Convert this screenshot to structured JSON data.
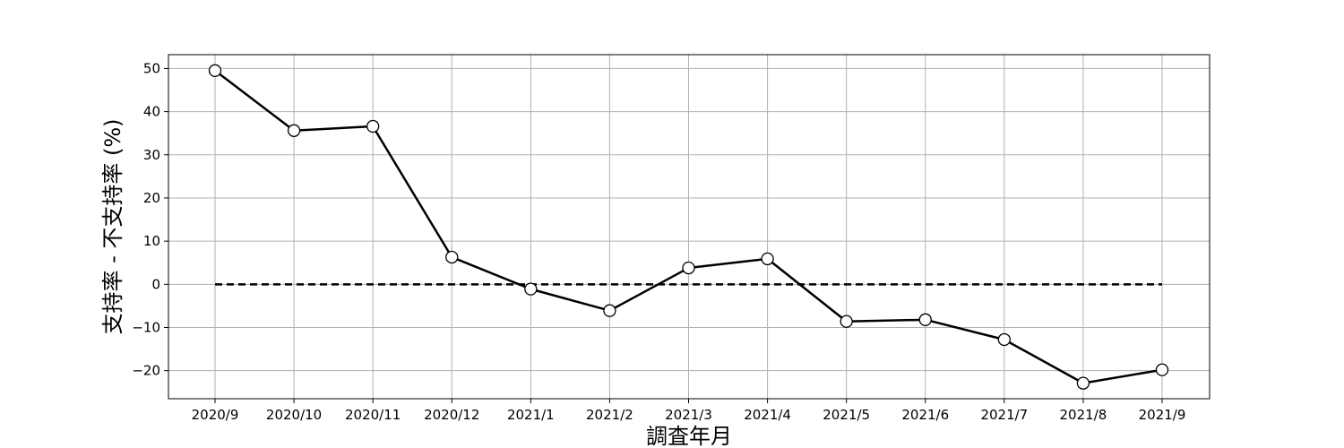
{
  "chart_data": {
    "type": "line",
    "title": "",
    "xlabel": "調査年月",
    "ylabel": "支持率 - 不支持率 (%)",
    "categories": [
      "2020/9",
      "2020/10",
      "2020/11",
      "2020/12",
      "2021/1",
      "2021/2",
      "2021/3",
      "2021/4",
      "2021/5",
      "2021/6",
      "2021/7",
      "2021/8",
      "2021/9"
    ],
    "series": [
      {
        "values": [
          49.5,
          35.6,
          36.6,
          6.3,
          -1.1,
          -6.1,
          3.8,
          5.9,
          -8.6,
          -8.2,
          -12.8,
          -22.9,
          -19.8
        ],
        "color": "#000000",
        "marker": "circle-open"
      }
    ],
    "reference_line": {
      "value": 0,
      "style": "dashed",
      "color": "#000000"
    },
    "yticks": [
      -20,
      -10,
      0,
      10,
      20,
      30,
      40,
      50
    ],
    "ytick_labels": [
      "−20",
      "−10",
      "0",
      "10",
      "20",
      "30",
      "40",
      "50"
    ],
    "ylim": [
      -26.5,
      53.2
    ],
    "grid": true
  }
}
